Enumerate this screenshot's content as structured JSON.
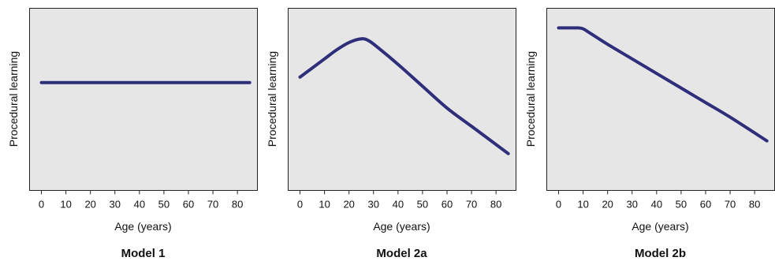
{
  "chart_data": [
    {
      "type": "line",
      "title": "Model 1",
      "xlabel": "Age (years)",
      "ylabel": "Procedural learning",
      "x_ticks": [
        0,
        10,
        20,
        30,
        40,
        50,
        60,
        70,
        80
      ],
      "xlim": [
        -5,
        88
      ],
      "ylim": [
        0,
        1
      ],
      "grid": false,
      "y_ticks_shown": false,
      "color": "#2e2e7a",
      "series": [
        {
          "x": [
            0,
            85
          ],
          "y": [
            0.59,
            0.59
          ]
        }
      ]
    },
    {
      "type": "line",
      "title": "Model 2a",
      "xlabel": "Age (years)",
      "ylabel": "Procedural learning",
      "x_ticks": [
        0,
        10,
        20,
        30,
        40,
        50,
        60,
        70,
        80
      ],
      "xlim": [
        -5,
        88
      ],
      "ylim": [
        0,
        1
      ],
      "grid": false,
      "y_ticks_shown": false,
      "color": "#2e2e7a",
      "series": [
        {
          "x": [
            0,
            5,
            10,
            15,
            20,
            25,
            28,
            32,
            40,
            50,
            60,
            70,
            85
          ],
          "y": [
            0.62,
            0.67,
            0.72,
            0.77,
            0.81,
            0.83,
            0.82,
            0.78,
            0.69,
            0.57,
            0.45,
            0.35,
            0.2
          ]
        }
      ]
    },
    {
      "type": "line",
      "title": "Model 2b",
      "xlabel": "Age (years)",
      "ylabel": "Procedural learning",
      "x_ticks": [
        0,
        10,
        20,
        30,
        40,
        50,
        60,
        70,
        80
      ],
      "xlim": [
        -5,
        88
      ],
      "ylim": [
        0,
        1
      ],
      "grid": false,
      "y_ticks_shown": false,
      "color": "#2e2e7a",
      "series": [
        {
          "x": [
            0,
            5,
            8,
            10,
            13,
            20,
            30,
            40,
            50,
            60,
            70,
            85
          ],
          "y": [
            0.89,
            0.89,
            0.89,
            0.885,
            0.86,
            0.8,
            0.72,
            0.64,
            0.56,
            0.48,
            0.4,
            0.27
          ]
        }
      ]
    }
  ]
}
